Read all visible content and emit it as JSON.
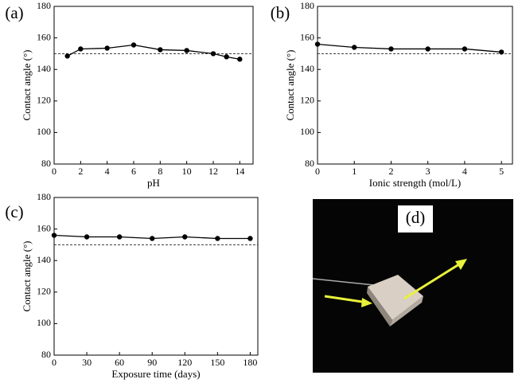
{
  "chart_data": [
    {
      "type": "line",
      "panel_label": "(a)",
      "x_label": "pH",
      "y_label": "Contact angle (°)",
      "x": [
        1,
        2,
        4,
        6,
        8,
        10,
        12,
        13,
        14
      ],
      "values": [
        148.5,
        153,
        153.5,
        155.5,
        152.5,
        152,
        150,
        148,
        146.5
      ],
      "xlim": [
        0,
        15
      ],
      "xticks": [
        0,
        2,
        4,
        6,
        8,
        10,
        12,
        14
      ],
      "ylim": [
        80,
        180
      ],
      "yticks": [
        80,
        100,
        120,
        140,
        160,
        180
      ],
      "reference_line": 150,
      "color": "#000000"
    },
    {
      "type": "line",
      "panel_label": "(b)",
      "x_label": "Ionic strength (mol/L)",
      "y_label": "Contact angle (°)",
      "x": [
        0,
        1,
        2,
        3,
        4,
        5
      ],
      "values": [
        156,
        154,
        153,
        153,
        153,
        151
      ],
      "xlim": [
        0,
        5.3
      ],
      "xticks": [
        0,
        1,
        2,
        3,
        4,
        5
      ],
      "ylim": [
        80,
        180
      ],
      "yticks": [
        80,
        100,
        120,
        140,
        160,
        180
      ],
      "reference_line": 150,
      "color": "#000000"
    },
    {
      "type": "line",
      "panel_label": "(c)",
      "x_label": "Exposure time (days)",
      "y_label": "Contact angle (°)",
      "x": [
        0,
        30,
        60,
        90,
        120,
        150,
        180
      ],
      "values": [
        156,
        155,
        155,
        154,
        155,
        154,
        154
      ],
      "xlim": [
        0,
        187
      ],
      "xticks": [
        0,
        30,
        60,
        90,
        120,
        150,
        180
      ],
      "ylim": [
        80,
        180
      ],
      "yticks": [
        80,
        100,
        120,
        140,
        160,
        180
      ],
      "reference_line": 150,
      "color": "#000000"
    }
  ],
  "photo": {
    "panel_label": "(d)"
  }
}
